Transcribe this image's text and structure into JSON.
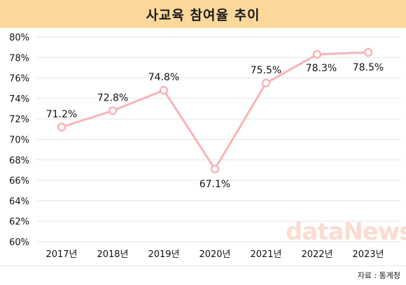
{
  "header": {
    "title": "사교육 참여율 추이"
  },
  "source": "자료 : 통계청",
  "watermark": "dataNews",
  "colors": {
    "line": "#f7b4b8",
    "marker_fill": "#ffffff",
    "title_bg": "#fcd89a",
    "grid": "#e6e6e6"
  },
  "chart_data": {
    "type": "line",
    "title": "사교육 참여율 추이",
    "categories": [
      "2017년",
      "2018년",
      "2019년",
      "2020년",
      "2021년",
      "2022년",
      "2023년"
    ],
    "values": [
      71.2,
      72.8,
      74.8,
      67.1,
      75.5,
      78.3,
      78.5
    ],
    "value_labels": [
      "71.2%",
      "72.8%",
      "74.8%",
      "67.1%",
      "75.5%",
      "78.3%",
      "78.5%"
    ],
    "ylim": [
      60,
      80
    ],
    "yticks": [
      60,
      62,
      64,
      66,
      68,
      70,
      72,
      74,
      76,
      78,
      80
    ],
    "ytick_labels": [
      "60%",
      "62%",
      "64%",
      "66%",
      "68%",
      "70%",
      "72%",
      "74%",
      "76%",
      "78%",
      "80%"
    ],
    "grid": true,
    "xlabel": "",
    "ylabel": ""
  }
}
